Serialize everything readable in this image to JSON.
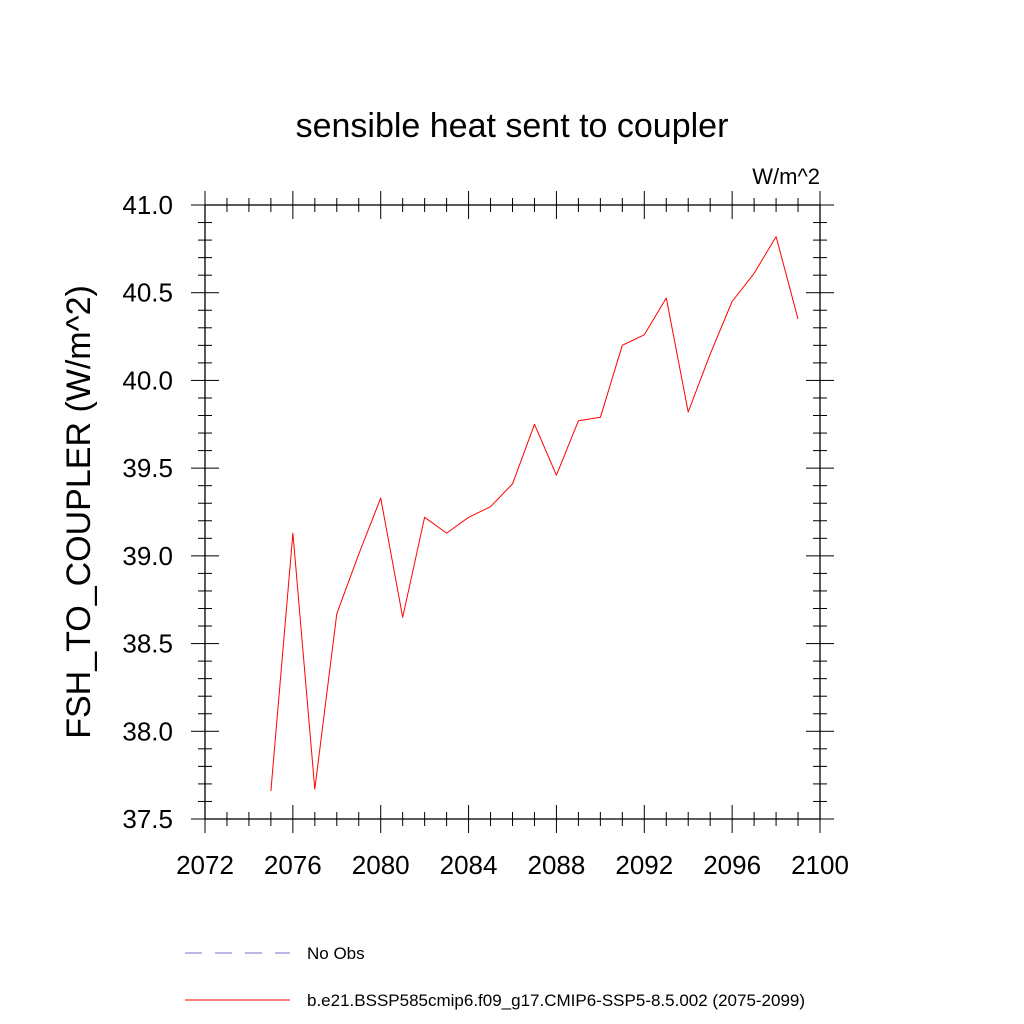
{
  "chart_data": {
    "type": "line",
    "title": "sensible heat sent to coupler",
    "units_label": "W/m^2",
    "ylabel": "FSH_TO_COUPLER  (W/m^2)",
    "xlabel": "",
    "xlim": [
      2072,
      2100
    ],
    "ylim": [
      37.5,
      41.0
    ],
    "x_ticks": [
      2072,
      2076,
      2080,
      2084,
      2088,
      2092,
      2096,
      2100
    ],
    "x_tick_labels": [
      "2072",
      "2076",
      "2080",
      "2084",
      "2088",
      "2092",
      "2096",
      "2100"
    ],
    "y_ticks": [
      37.5,
      38.0,
      38.5,
      39.0,
      39.5,
      40.0,
      40.5,
      41.0
    ],
    "y_tick_labels": [
      "37.5",
      "38.0",
      "38.5",
      "39.0",
      "39.5",
      "40.0",
      "40.5",
      "41.0"
    ],
    "grid": false,
    "series": [
      {
        "name": "b.e21.BSSP585cmip6.f09_g17.CMIP6-SSP5-8.5.002 (2075-2099)",
        "color": "#ff0000",
        "style": "solid",
        "x": [
          2075,
          2076,
          2077,
          2078,
          2079,
          2080,
          2081,
          2082,
          2083,
          2084,
          2085,
          2086,
          2087,
          2088,
          2089,
          2090,
          2091,
          2092,
          2093,
          2094,
          2095,
          2096,
          2097,
          2098,
          2099
        ],
        "y": [
          37.66,
          39.13,
          37.67,
          38.67,
          39.01,
          39.33,
          38.65,
          39.22,
          39.13,
          39.22,
          39.28,
          39.41,
          39.75,
          39.46,
          39.77,
          39.79,
          40.2,
          40.26,
          40.47,
          39.82,
          40.15,
          40.45,
          40.61,
          40.82,
          40.35
        ]
      }
    ],
    "legend": [
      {
        "label": "No Obs",
        "color": "#6f6fd0",
        "style": "dashed"
      },
      {
        "label": "b.e21.BSSP585cmip6.f09_g17.CMIP6-SSP5-8.5.002 (2075-2099)",
        "color": "#ff0000",
        "style": "solid"
      }
    ],
    "legend_position": "bottom"
  }
}
